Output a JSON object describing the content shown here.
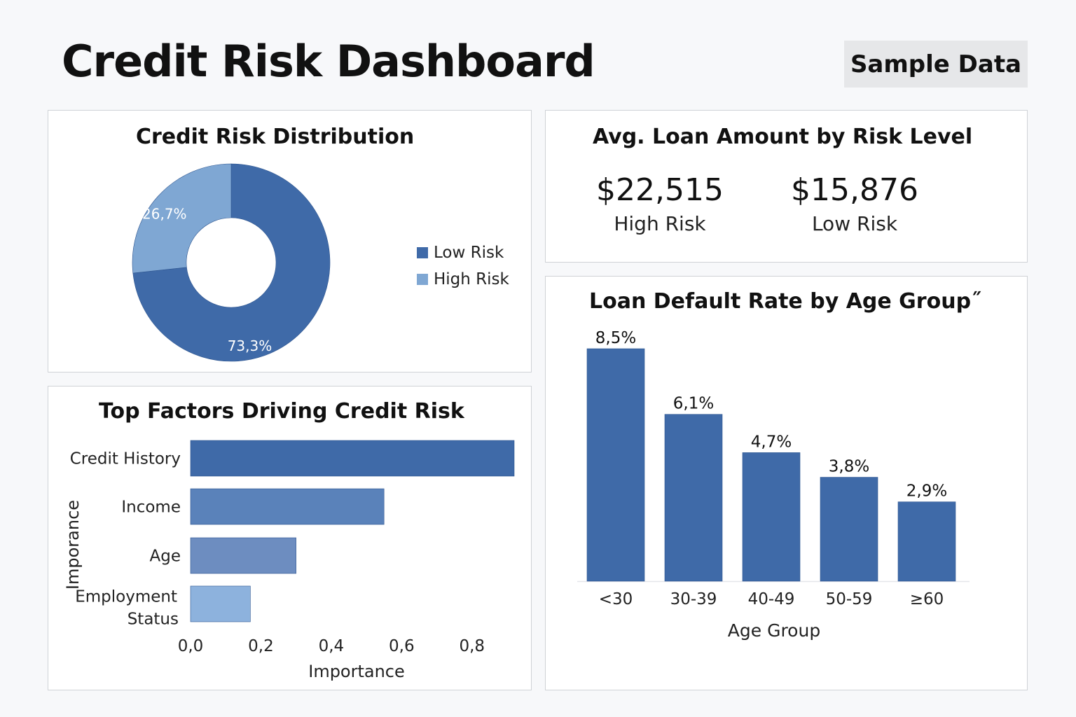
{
  "header": {
    "title": "Credit Risk Dashboard",
    "badge": "Sample Data"
  },
  "colors": {
    "dark_blue": "#3f6aa8",
    "light_blue": "#7fa7d3",
    "mid_blue": "#5a82ba",
    "muted_blue": "#6d8dc0",
    "pale_blue": "#8db2dd"
  },
  "distribution": {
    "title": "Credit Risk Distribution",
    "legend": [
      "Low Risk",
      "High Risk"
    ]
  },
  "loan_amount": {
    "title": "Avg. Loan Amount by Risk Level",
    "metrics": [
      {
        "value": "$22,515",
        "label": "High Risk"
      },
      {
        "value": "$15,876",
        "label": "Low Risk"
      }
    ]
  },
  "factors": {
    "title": "Top Factors Driving Credit Risk"
  },
  "age": {
    "title": "Loan Default Rate by Age Group˝"
  },
  "chart_data": [
    {
      "type": "pie",
      "title": "Credit Risk Distribution",
      "labels": [
        "Low Risk",
        "High Risk"
      ],
      "values": [
        73.3,
        26.7
      ],
      "value_labels": [
        "73,3%",
        "26,7%"
      ],
      "donut": true,
      "legend": "right"
    },
    {
      "type": "bar",
      "orientation": "horizontal",
      "title": "Top Factors Driving Credit Risk",
      "categories": [
        "Credit History",
        "Income",
        "Age",
        "Employment Status"
      ],
      "category_labels": [
        [
          "Credit History"
        ],
        [
          "Income"
        ],
        [
          "Age"
        ],
        [
          "Employment",
          "Status"
        ]
      ],
      "values": [
        0.92,
        0.55,
        0.3,
        0.17
      ],
      "xlabel": "Importance",
      "ylabel": "Imporance",
      "xticks": [
        "0,0",
        "0,2",
        "0,4",
        "0,6",
        "0,8"
      ],
      "xlim": [
        0,
        0.92
      ]
    },
    {
      "type": "bar",
      "title": "Loan Default Rate by Age Group˝",
      "categories": [
        "<30",
        "30-39",
        "40-49",
        "50-59",
        "≥60"
      ],
      "values": [
        8.5,
        6.1,
        4.7,
        3.8,
        2.9
      ],
      "value_labels": [
        "8,5%",
        "6,1%",
        "4,7%",
        "3,8%",
        "2,9%"
      ],
      "xlabel": "Age Group",
      "ylim": [
        0,
        8.5
      ]
    }
  ]
}
